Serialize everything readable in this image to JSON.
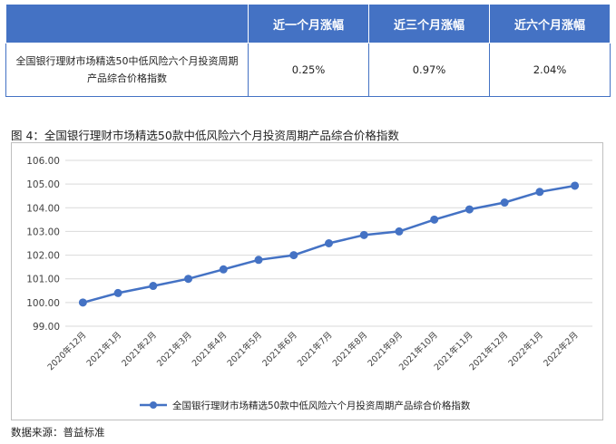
{
  "table": {
    "corner": "",
    "headers": [
      "近一个月涨幅",
      "近三个月涨幅",
      "近六个月涨幅"
    ],
    "row_label": "全国银行理财市场精选50中低风险六个月投资周期产品综合价格指数",
    "values": [
      "0.25%",
      "0.97%",
      "2.04%"
    ]
  },
  "figure_title": "图 4：全国银行理财市场精选50款中低风险六个月投资周期产品综合价格指数",
  "source": "数据来源：普益标准",
  "colors": {
    "header_bg": "#4472c4",
    "series": "#4472c4",
    "grid": "#d9d9d9"
  },
  "chart_data": {
    "type": "line",
    "title": "",
    "xlabel": "",
    "ylabel": "",
    "ylim": [
      99.0,
      106.0
    ],
    "yticks": [
      "99.00",
      "100.00",
      "101.00",
      "102.00",
      "103.00",
      "104.00",
      "105.00",
      "106.00"
    ],
    "grid": true,
    "legend_position": "bottom",
    "categories": [
      "2020年12月",
      "2021年1月",
      "2021年2月",
      "2021年3月",
      "2021年4月",
      "2021年5月",
      "2021年6月",
      "2021年7月",
      "2021年8月",
      "2021年9月",
      "2021年10月",
      "2021年11月",
      "2021年12月",
      "2022年1月",
      "2022年2月"
    ],
    "series": [
      {
        "name": "全国银行理财市场精选50款中低风险六个月投资周期产品综合价格指数",
        "values": [
          100.0,
          100.4,
          100.7,
          101.0,
          101.4,
          101.8,
          102.0,
          102.5,
          102.85,
          103.0,
          103.5,
          103.93,
          104.22,
          104.67,
          104.93
        ]
      }
    ]
  }
}
